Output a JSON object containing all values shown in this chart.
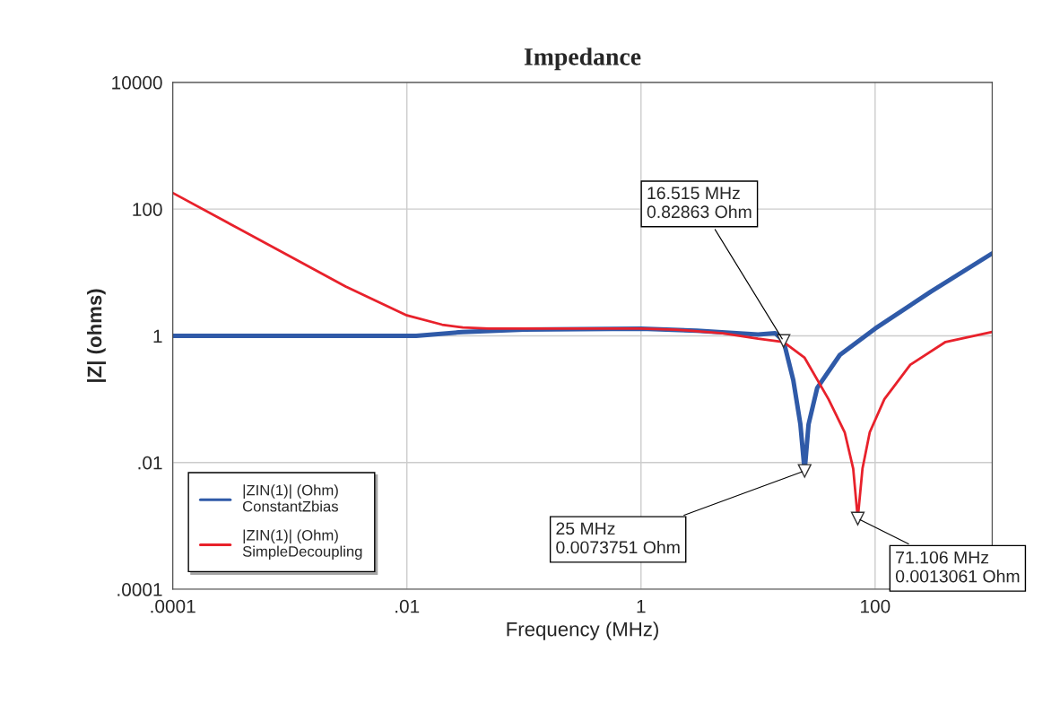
{
  "chart_data": {
    "type": "line",
    "title": "Impedance",
    "xlabel": "Frequency (MHz)",
    "ylabel": "|Z| (ohms)",
    "log": "xy",
    "grid": true,
    "legend": "bottom left",
    "xlim": [
      0.0001,
      1000
    ],
    "ylim": [
      0.0001,
      10000
    ],
    "xticks": [
      {
        "value": 0.0001,
        "label": ".0001"
      },
      {
        "value": 0.01,
        "label": ".01"
      },
      1,
      100
    ],
    "yticks": [
      {
        "value": 0.0001,
        "label": ".0001"
      },
      {
        "value": 0.01,
        "label": ".01"
      },
      1,
      100,
      10000
    ],
    "series": [
      {
        "name": "|ZIN(1)| (Ohm)\nConstantZbias",
        "color": "#2f5aa8",
        "x": [
          0.0001,
          0.001,
          0.012,
          0.03,
          0.1,
          1,
          3,
          10,
          14,
          16.515,
          20,
          23,
          25,
          27,
          32,
          50,
          100,
          300,
          1000
        ],
        "values": [
          1.0,
          1.0,
          1.0,
          1.15,
          1.25,
          1.3,
          1.2,
          1.05,
          1.1,
          0.82863,
          0.2,
          0.04,
          0.0073751,
          0.04,
          0.15,
          0.5,
          1.3,
          5,
          20
        ]
      },
      {
        "name": "|ZIN(1)| (Ohm)\nSimpleDecoupling",
        "color": "#e8212b",
        "x": [
          0.0001,
          0.001,
          0.003,
          0.01,
          0.02,
          0.03,
          0.05,
          0.1,
          1,
          2,
          5,
          10,
          16.515,
          25,
          40,
          55,
          65,
          71.106,
          78,
          90,
          120,
          200,
          400,
          1000
        ],
        "values": [
          180,
          18,
          6,
          2.1,
          1.5,
          1.35,
          1.3,
          1.3,
          1.3,
          1.25,
          1.1,
          0.9,
          0.8,
          0.45,
          0.1,
          0.03,
          0.008,
          0.0013061,
          0.008,
          0.03,
          0.1,
          0.35,
          0.8,
          1.15
        ]
      }
    ],
    "annotations": [
      {
        "text": "16.515 MHz\n0.82863 Ohm",
        "x": 16.515,
        "y": 0.82863
      },
      {
        "text": "25 MHz\n0.0073751 Ohm",
        "x": 25,
        "y": 0.0073751
      },
      {
        "text": "71.106 MHz\n0.0013061 Ohm",
        "x": 71.106,
        "y": 0.0013061
      }
    ]
  }
}
